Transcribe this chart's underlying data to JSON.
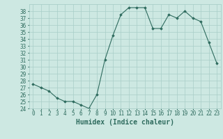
{
  "x": [
    0,
    1,
    2,
    3,
    4,
    5,
    6,
    7,
    8,
    9,
    10,
    11,
    12,
    13,
    14,
    15,
    16,
    17,
    18,
    19,
    20,
    21,
    22,
    23
  ],
  "y": [
    27.5,
    27.0,
    26.5,
    25.5,
    25.0,
    25.0,
    24.5,
    24.0,
    26.0,
    31.0,
    34.5,
    37.5,
    38.5,
    38.5,
    38.5,
    35.5,
    35.5,
    37.5,
    37.0,
    38.0,
    37.0,
    36.5,
    33.5,
    30.5
  ],
  "xlabel": "Humidex (Indice chaleur)",
  "ylim": [
    24,
    39
  ],
  "xlim": [
    -0.5,
    23.5
  ],
  "yticks": [
    24,
    25,
    26,
    27,
    28,
    29,
    30,
    31,
    32,
    33,
    34,
    35,
    36,
    37,
    38
  ],
  "xticks": [
    0,
    1,
    2,
    3,
    4,
    5,
    6,
    7,
    8,
    9,
    10,
    11,
    12,
    13,
    14,
    15,
    16,
    17,
    18,
    19,
    20,
    21,
    22,
    23
  ],
  "line_color": "#2e6b5e",
  "marker_color": "#2e6b5e",
  "bg_color": "#cde8e2",
  "grid_color": "#a8cec8",
  "tick_label_color": "#2e6b5e",
  "xlabel_color": "#2e6b5e",
  "xlabel_fontsize": 7,
  "tick_fontsize": 5.5
}
